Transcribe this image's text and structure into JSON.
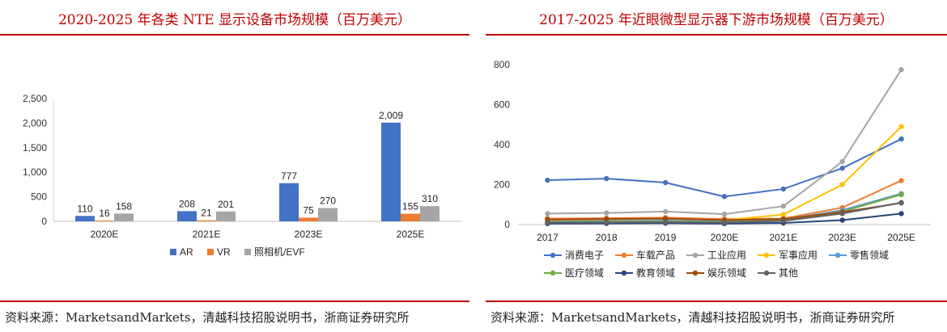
{
  "left": {
    "title": "2020-2025 年各类 NTE 显示设备市场规模（百万美元）",
    "source": "资料来源：MarketsandMarkets，清越科技招股说明书，浙商证券研究所"
  },
  "right": {
    "title": "2017-2025 年近眼微型显示器下游市场规模（百万美元）",
    "source": "资料来源：MarketsandMarkets，清越科技招股说明书，浙商证券研究所"
  },
  "chart_data": [
    {
      "type": "bar",
      "categories": [
        "2020E",
        "2021E",
        "2023E",
        "2025E"
      ],
      "series": [
        {
          "name": "AR",
          "values": [
            110,
            208,
            777,
            2009
          ],
          "color": "#4472c4"
        },
        {
          "name": "VR",
          "values": [
            16,
            21,
            75,
            155
          ],
          "color": "#ed7d31"
        },
        {
          "name": "照相机/EVF",
          "values": [
            158,
            201,
            270,
            310
          ],
          "color": "#a5a5a5"
        }
      ],
      "ylim": [
        0,
        2500
      ],
      "yticks": [
        "0",
        "500",
        "1,000",
        "1,500",
        "2,000",
        "2,500"
      ],
      "data_labels": [
        [
          "110",
          "208",
          "777",
          "2,009"
        ],
        [
          "16",
          "21",
          "75",
          "155"
        ],
        [
          "158",
          "201",
          "270",
          "310"
        ]
      ],
      "legend_position": "bottom",
      "grid": false
    },
    {
      "type": "line",
      "categories": [
        "2017",
        "2018",
        "2019",
        "2020E",
        "2021E",
        "2023E",
        "2025E"
      ],
      "series": [
        {
          "name": "消费电子",
          "values": [
            222,
            230,
            210,
            140,
            178,
            282,
            428
          ],
          "color": "#4472c4"
        },
        {
          "name": "车载产品",
          "values": [
            30,
            32,
            35,
            28,
            30,
            85,
            220
          ],
          "color": "#ed7d31"
        },
        {
          "name": "工业应用",
          "values": [
            55,
            58,
            65,
            52,
            92,
            315,
            775
          ],
          "color": "#a5a5a5"
        },
        {
          "name": "军事应用",
          "values": [
            20,
            25,
            30,
            22,
            50,
            200,
            490
          ],
          "color": "#ffc000"
        },
        {
          "name": "零售领域",
          "values": [
            15,
            18,
            20,
            15,
            25,
            72,
            155
          ],
          "color": "#5b9bd5"
        },
        {
          "name": "医疗领域",
          "values": [
            12,
            14,
            16,
            12,
            22,
            65,
            150
          ],
          "color": "#70ad47"
        },
        {
          "name": "教育领域",
          "values": [
            5,
            6,
            7,
            5,
            8,
            22,
            55
          ],
          "color": "#264478"
        },
        {
          "name": "娱乐领域",
          "values": [
            25,
            28,
            30,
            22,
            28,
            62,
            108
          ],
          "color": "#9e480e"
        },
        {
          "name": "其他",
          "values": [
            10,
            11,
            12,
            10,
            18,
            55,
            110
          ],
          "color": "#636363"
        }
      ],
      "ylim": [
        0,
        800
      ],
      "yticks": [
        "0",
        "200",
        "400",
        "600",
        "800"
      ],
      "legend_position": "bottom",
      "grid": false
    }
  ]
}
